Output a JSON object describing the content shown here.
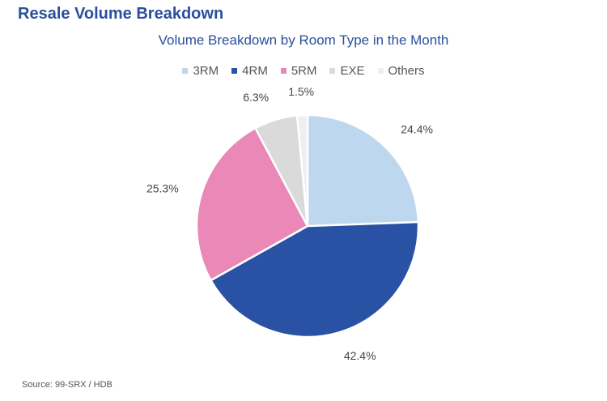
{
  "heading": "Resale Volume Breakdown",
  "source": "Source: 99-SRX / HDB",
  "chart_data": {
    "type": "pie",
    "title": "Volume Breakdown by Room Type in the Month",
    "legend_position": "top",
    "slices": [
      {
        "label": "3RM",
        "value": 24.4,
        "display": "24.4%",
        "color": "#bdd7ee"
      },
      {
        "label": "4RM",
        "value": 42.4,
        "display": "42.4%",
        "color": "#2a52a4"
      },
      {
        "label": "5RM",
        "value": 25.3,
        "display": "25.3%",
        "color": "#ea88b7"
      },
      {
        "label": "EXE",
        "value": 6.3,
        "display": "6.3%",
        "color": "#dadada"
      },
      {
        "label": "Others",
        "value": 1.5,
        "display": "1.5%",
        "color": "#efefef"
      }
    ]
  }
}
